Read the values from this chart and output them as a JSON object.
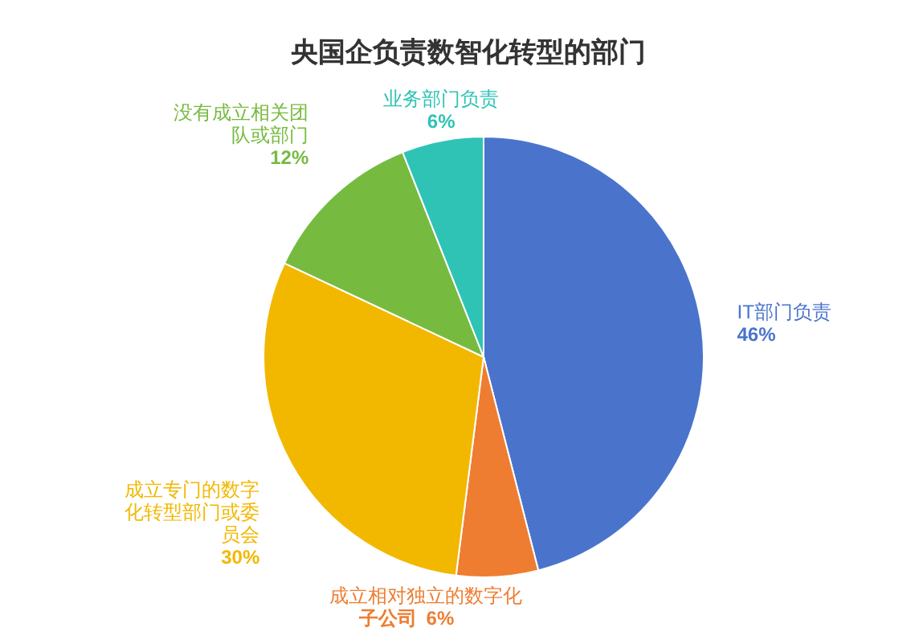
{
  "chart_data": {
    "type": "pie",
    "title": "央国企负责数智化转型的部门",
    "categories": [
      "IT部门负责",
      "成立相对独立的数字化子公司",
      "成立专门的数字化转型部门或委员会",
      "没有成立相关团队或部门",
      "业务部门负责"
    ],
    "values": [
      46,
      6,
      30,
      12,
      6
    ],
    "value_labels": [
      "46%",
      "6%",
      "30%",
      "12%",
      "6%"
    ],
    "colors": [
      "#4a74cc",
      "#ee7d31",
      "#f2b800",
      "#76bb40",
      "#2fc3b5"
    ]
  }
}
